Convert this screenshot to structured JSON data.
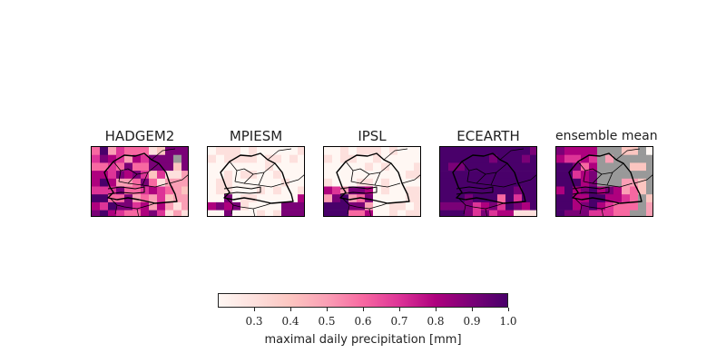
{
  "panels": [
    {
      "title": "HADGEM2"
    },
    {
      "title": "MPIESM"
    },
    {
      "title": "IPSL"
    },
    {
      "title": "ECEARTH"
    },
    {
      "title": "ensemble mean"
    }
  ],
  "colorbar": {
    "ticks": [
      "0.3",
      "0.4",
      "0.5",
      "0.6",
      "0.7",
      "0.8",
      "0.9",
      "1.0"
    ],
    "range": [
      0.2,
      1.0
    ],
    "label": "maximal daily precipitation [mm]",
    "colormap": "RdPu",
    "colors": [
      "#fff7f3",
      "#fde0dd",
      "#fcc5c0",
      "#fa9fb5",
      "#f768a1",
      "#dd3497",
      "#ae017e",
      "#7a0177",
      "#49006a"
    ],
    "missing_color": "#999999"
  }
}
